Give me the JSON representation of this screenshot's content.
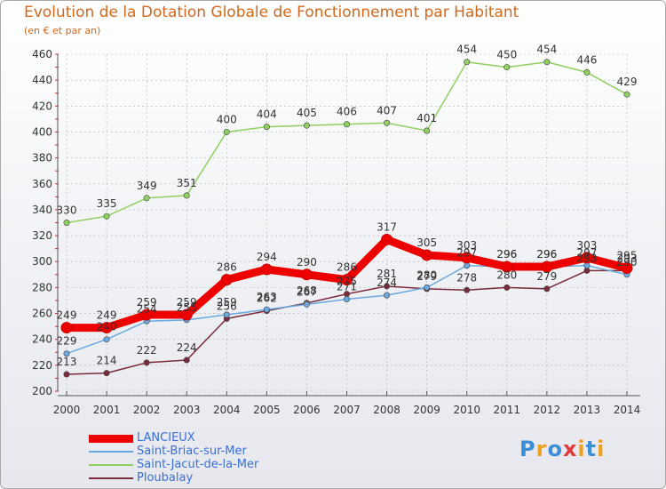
{
  "title": "Evolution de la Dotation Globale de Fonctionnement par Habitant",
  "subtitle": "(en € et par an)",
  "logo": {
    "letters": [
      "P",
      "r",
      "o",
      "x",
      "i",
      "t",
      "i"
    ],
    "colors": [
      "#3a8fd8",
      "#f0a020",
      "#3a8fd8",
      "#e03a3a",
      "#f0a020",
      "#3a8fd8",
      "#f0a020"
    ]
  },
  "chart_data": {
    "type": "line",
    "x": [
      "2000",
      "2001",
      "2002",
      "2003",
      "2004",
      "2005",
      "2006",
      "2007",
      "2008",
      "2009",
      "2010",
      "2011",
      "2012",
      "2013",
      "2014"
    ],
    "ylim": [
      200,
      460
    ],
    "yticks": [
      "200",
      "220",
      "240",
      "260",
      "280",
      "300",
      "320",
      "340",
      "360",
      "380",
      "400",
      "420",
      "440",
      "460"
    ],
    "grid": true,
    "legend_position": "bottom-left",
    "series": [
      {
        "name": "Saint-Jacut-de-la-Mer",
        "color": "#90d060",
        "values": [
          330,
          335,
          349,
          351,
          400,
          404,
          405,
          406,
          407,
          401,
          454,
          450,
          454,
          446,
          429
        ],
        "labels": [
          "330",
          "335",
          "349",
          "351",
          "400",
          "404",
          "405",
          "406",
          "407",
          "401",
          "454",
          "450",
          "454",
          "446",
          "429"
        ]
      },
      {
        "name": "Ploubalay",
        "color": "#7a2a3a",
        "values": [
          213,
          214,
          222,
          224,
          256,
          262,
          268,
          275,
          281,
          279,
          278,
          280,
          279,
          293,
          293
        ],
        "labels": [
          "213",
          "214",
          "222",
          "224",
          "256",
          "262",
          "268",
          "275",
          "281",
          "279",
          "278",
          "280",
          "279",
          "293",
          "293"
        ]
      },
      {
        "name": "Saint-Briac-sur-Mer",
        "color": "#6aa8e0",
        "values": [
          229,
          240,
          254,
          255,
          259,
          263,
          267,
          271,
          274,
          280,
          297,
          296,
          296,
          297,
          290
        ],
        "labels": [
          "229",
          "240",
          "254",
          "255",
          "259",
          "263",
          "267",
          "271",
          "274",
          "280",
          "297",
          "296",
          "296",
          "297",
          "290"
        ]
      },
      {
        "name": "LANCIEUX",
        "color": "#ee0000",
        "values": [
          249,
          249,
          259,
          259,
          286,
          294,
          290,
          286,
          317,
          305,
          303,
          296,
          296,
          303,
          295
        ],
        "labels": [
          "249",
          "249",
          "259",
          "259",
          "286",
          "294",
          "290",
          "286",
          "317",
          "305",
          "303",
          "296",
          "296",
          "303",
          "295"
        ]
      }
    ],
    "legend": [
      "LANCIEUX",
      "Saint-Briac-sur-Mer",
      "Saint-Jacut-de-la-Mer",
      "Ploubalay"
    ]
  }
}
